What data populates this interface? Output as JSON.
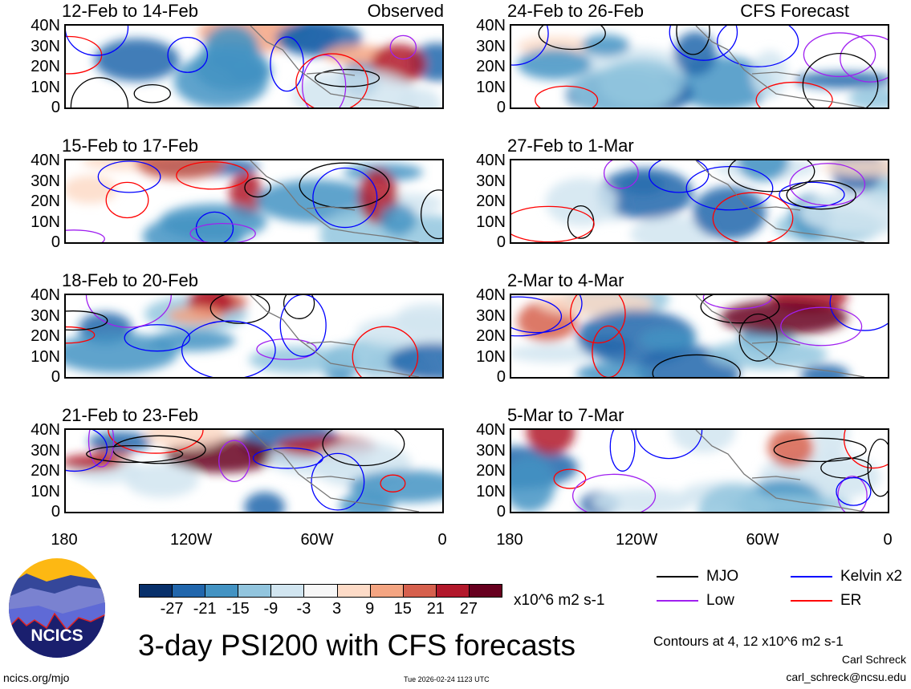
{
  "panels": {
    "observed_label": "Observed",
    "forecast_label": "CFS Forecast",
    "left": [
      "12-Feb to 14-Feb",
      "15-Feb to 17-Feb",
      "18-Feb to 20-Feb",
      "21-Feb to 23-Feb"
    ],
    "right": [
      "24-Feb to 26-Feb",
      "27-Feb to 1-Mar",
      "2-Mar to 4-Mar",
      "5-Mar to 7-Mar"
    ]
  },
  "axes": {
    "y_ticks": [
      "40N",
      "30N",
      "20N",
      "10N",
      "0"
    ],
    "x_ticks": [
      "180",
      "120W",
      "60W",
      "0"
    ]
  },
  "colorbar": {
    "colors": [
      "#08306b",
      "#2166ac",
      "#4393c3",
      "#92c5de",
      "#d1e5f0",
      "#f7f7f7",
      "#fddbc7",
      "#f4a582",
      "#d6604d",
      "#b2182b",
      "#67001f"
    ],
    "labels": [
      "-27",
      "-21",
      "-15",
      "-9",
      "-3",
      "3",
      "9",
      "15",
      "21",
      "27"
    ],
    "units": "x10^6 m2 s-1"
  },
  "legend": {
    "items": [
      {
        "label": "MJO",
        "color": "#000000"
      },
      {
        "label": "Kelvin x2",
        "color": "#0000ff"
      },
      {
        "label": "Low",
        "color": "#a020f0"
      },
      {
        "label": "ER",
        "color": "#ff0000"
      }
    ],
    "contours_note": "Contours at 4, 12 x10^6 m2 s-1"
  },
  "title": "3-day PSI200 with CFS forecasts",
  "logo_text": "NCICS",
  "footer": {
    "url": "ncics.org/mjo",
    "timestamp": "Tue 2026-02-24 1123 UTC",
    "author": "Carl Schreck",
    "email": "carl_schreck@ncsu.edu"
  }
}
